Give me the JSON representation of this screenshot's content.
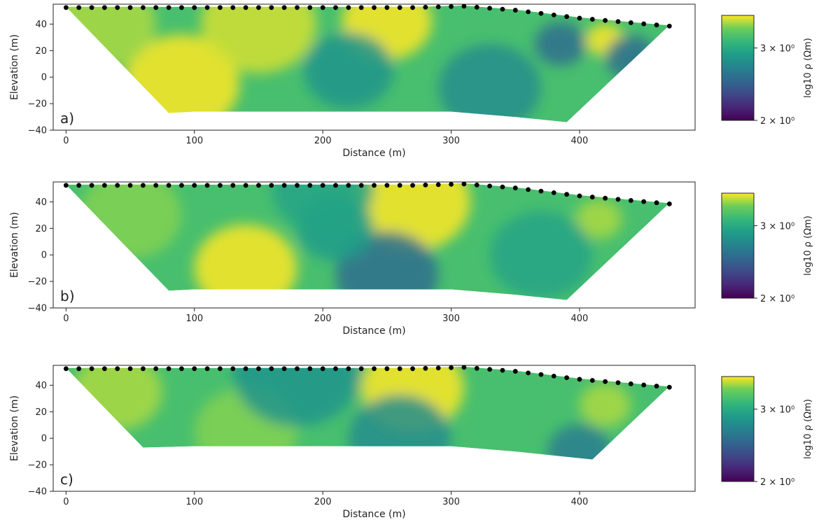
{
  "colors": {
    "electrode": "#000000",
    "cmap_low": "#440154",
    "cmap_mid": "#21918c",
    "cmap_high": "#fde725"
  },
  "chart_data": [
    {
      "type": "heatmap",
      "panel_label": "a)",
      "xlabel": "Distance (m)",
      "ylabel": "Elevation (m)",
      "xlim": [
        -10,
        490
      ],
      "ylim": [
        -40,
        55
      ],
      "xticks": [
        0,
        100,
        200,
        300,
        400
      ],
      "yticks": [
        -40,
        -20,
        0,
        20,
        40
      ],
      "colorbar": {
        "label": "log10 ρ (Ωm)",
        "ticks": [
          "3 × 10⁰",
          "2 × 10⁰"
        ],
        "tick_values": [
          3.0,
          2.0
        ],
        "range": [
          2.0,
          3.45
        ]
      },
      "surface": [
        [
          0,
          53
        ],
        [
          100,
          53
        ],
        [
          200,
          53
        ],
        [
          270,
          53
        ],
        [
          310,
          54
        ],
        [
          350,
          51
        ],
        [
          400,
          45
        ],
        [
          470,
          39
        ]
      ],
      "bottom": [
        [
          470,
          39
        ],
        [
          390,
          -34
        ],
        [
          350,
          -30
        ],
        [
          300,
          -26
        ],
        [
          200,
          -26
        ],
        [
          100,
          -26
        ],
        [
          80,
          -27
        ],
        [
          0,
          53
        ]
      ],
      "electrodes_x": [
        0,
        10,
        20,
        30,
        40,
        50,
        60,
        70,
        80,
        90,
        100,
        110,
        120,
        130,
        140,
        150,
        160,
        170,
        180,
        190,
        200,
        210,
        220,
        230,
        240,
        250,
        260,
        270,
        280,
        290,
        300,
        310,
        320,
        330,
        340,
        350,
        360,
        370,
        380,
        390,
        400,
        410,
        420,
        430,
        440,
        450,
        460,
        470
      ],
      "anomalies": [
        {
          "x": 90,
          "y": -5,
          "r": 45,
          "value": 3.45
        },
        {
          "x": 30,
          "y": 40,
          "r": 40,
          "value": 3.35
        },
        {
          "x": 150,
          "y": 40,
          "r": 45,
          "value": 3.4
        },
        {
          "x": 250,
          "y": 42,
          "r": 35,
          "value": 3.45
        },
        {
          "x": 220,
          "y": 5,
          "r": 35,
          "value": 2.85
        },
        {
          "x": 330,
          "y": -8,
          "r": 40,
          "value": 2.8
        },
        {
          "x": 385,
          "y": 25,
          "r": 20,
          "value": 2.6
        },
        {
          "x": 420,
          "y": 28,
          "r": 15,
          "value": 3.45
        },
        {
          "x": 440,
          "y": 15,
          "r": 20,
          "value": 2.6
        }
      ]
    },
    {
      "type": "heatmap",
      "panel_label": "b)",
      "xlabel": "Distance (m)",
      "ylabel": "Elevation (m)",
      "xlim": [
        -10,
        490
      ],
      "ylim": [
        -40,
        55
      ],
      "xticks": [
        0,
        100,
        200,
        300,
        400
      ],
      "yticks": [
        -40,
        -20,
        0,
        20,
        40
      ],
      "colorbar": {
        "label": "log10 ρ (Ωm)",
        "ticks": [
          "3 × 10⁰",
          "2 × 10⁰"
        ],
        "tick_values": [
          3.0,
          2.0
        ],
        "range": [
          2.0,
          3.45
        ]
      },
      "surface": [
        [
          0,
          53
        ],
        [
          100,
          53
        ],
        [
          200,
          53
        ],
        [
          270,
          53
        ],
        [
          310,
          54
        ],
        [
          350,
          51
        ],
        [
          400,
          45
        ],
        [
          470,
          39
        ]
      ],
      "bottom": [
        [
          470,
          39
        ],
        [
          390,
          -34
        ],
        [
          350,
          -30
        ],
        [
          300,
          -26
        ],
        [
          200,
          -26
        ],
        [
          100,
          -26
        ],
        [
          80,
          -27
        ],
        [
          0,
          53
        ]
      ],
      "electrodes_x": [
        0,
        10,
        20,
        30,
        40,
        50,
        60,
        70,
        80,
        90,
        100,
        110,
        120,
        130,
        140,
        150,
        160,
        170,
        180,
        190,
        200,
        210,
        220,
        230,
        240,
        250,
        260,
        270,
        280,
        290,
        300,
        310,
        320,
        330,
        340,
        350,
        360,
        370,
        380,
        390,
        400,
        410,
        420,
        430,
        440,
        450,
        460,
        470
      ],
      "anomalies": [
        {
          "x": 140,
          "y": -10,
          "r": 40,
          "value": 3.45
        },
        {
          "x": 50,
          "y": 30,
          "r": 40,
          "value": 3.3
        },
        {
          "x": 270,
          "y": 40,
          "r": 45,
          "value": 3.45
        },
        {
          "x": 250,
          "y": -15,
          "r": 40,
          "value": 2.6
        },
        {
          "x": 210,
          "y": 20,
          "r": 30,
          "value": 2.9
        },
        {
          "x": 415,
          "y": 27,
          "r": 18,
          "value": 3.35
        },
        {
          "x": 370,
          "y": 0,
          "r": 40,
          "value": 2.95
        },
        {
          "x": 200,
          "y": 50,
          "r": 40,
          "value": 2.95
        }
      ]
    },
    {
      "type": "heatmap",
      "panel_label": "c)",
      "xlabel": "Distance (m)",
      "ylabel": "Elevation (m)",
      "xlim": [
        -10,
        490
      ],
      "ylim": [
        -40,
        55
      ],
      "xticks": [
        0,
        100,
        200,
        300,
        400
      ],
      "yticks": [
        -40,
        -20,
        0,
        20,
        40
      ],
      "colorbar": {
        "label": "log10 ρ (Ωm)",
        "ticks": [
          "3 × 10⁰",
          "2 × 10⁰"
        ],
        "tick_values": [
          3.0,
          2.0
        ],
        "range": [
          2.0,
          3.45
        ]
      },
      "surface": [
        [
          0,
          53
        ],
        [
          100,
          53
        ],
        [
          200,
          53
        ],
        [
          270,
          53
        ],
        [
          310,
          54
        ],
        [
          350,
          51
        ],
        [
          400,
          45
        ],
        [
          470,
          39
        ]
      ],
      "bottom": [
        [
          470,
          39
        ],
        [
          410,
          -16
        ],
        [
          350,
          -10
        ],
        [
          300,
          -6
        ],
        [
          200,
          -6
        ],
        [
          100,
          -6
        ],
        [
          60,
          -7
        ],
        [
          0,
          53
        ]
      ],
      "electrodes_x": [
        0,
        10,
        20,
        30,
        40,
        50,
        60,
        70,
        80,
        90,
        100,
        110,
        120,
        130,
        140,
        150,
        160,
        170,
        180,
        190,
        200,
        210,
        220,
        230,
        240,
        250,
        260,
        270,
        280,
        290,
        300,
        310,
        320,
        330,
        340,
        350,
        360,
        370,
        380,
        390,
        400,
        410,
        420,
        430,
        440,
        450,
        460,
        470
      ],
      "anomalies": [
        {
          "x": 40,
          "y": 35,
          "r": 35,
          "value": 3.35
        },
        {
          "x": 270,
          "y": 38,
          "r": 40,
          "value": 3.45
        },
        {
          "x": 140,
          "y": 5,
          "r": 40,
          "value": 3.3
        },
        {
          "x": 260,
          "y": 0,
          "r": 40,
          "value": 2.8
        },
        {
          "x": 400,
          "y": -10,
          "r": 25,
          "value": 2.7
        },
        {
          "x": 420,
          "y": 25,
          "r": 20,
          "value": 3.35
        },
        {
          "x": 180,
          "y": 50,
          "r": 50,
          "value": 2.85
        }
      ]
    }
  ]
}
